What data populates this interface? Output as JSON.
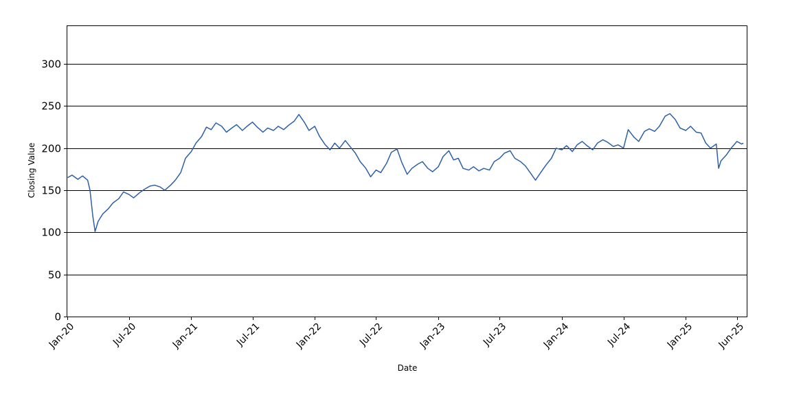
{
  "chart_data": {
    "type": "line",
    "title": "",
    "xlabel": "Date",
    "ylabel": "Closing Value",
    "ylim": [
      0,
      345
    ],
    "xlim": [
      "2020-01-01",
      "2025-06-30"
    ],
    "grid": "horizontal",
    "legend": "none",
    "yticks": [
      0,
      50,
      100,
      150,
      200,
      250,
      300
    ],
    "xticks": [
      {
        "label": "Jan-20",
        "date": "2020-01-01"
      },
      {
        "label": "Jul-20",
        "date": "2020-07-01"
      },
      {
        "label": "Jan-21",
        "date": "2021-01-01"
      },
      {
        "label": "Jul-21",
        "date": "2021-07-01"
      },
      {
        "label": "Jan-22",
        "date": "2022-01-01"
      },
      {
        "label": "Jul-22",
        "date": "2022-07-01"
      },
      {
        "label": "Jan-23",
        "date": "2023-01-01"
      },
      {
        "label": "Jul-23",
        "date": "2023-07-01"
      },
      {
        "label": "Jan-24",
        "date": "2024-01-01"
      },
      {
        "label": "Jul-24",
        "date": "2024-07-01"
      },
      {
        "label": "Jan-25",
        "date": "2025-01-01"
      },
      {
        "label": "Jun-25",
        "date": "2025-06-01"
      }
    ],
    "line_color": "#2b5fa8",
    "series": [
      {
        "x": [
          "2020-01-02",
          "2020-01-15",
          "2020-02-01",
          "2020-02-15",
          "2020-03-01",
          "2020-03-08",
          "2020-03-16",
          "2020-03-23",
          "2020-04-01",
          "2020-04-15",
          "2020-05-01",
          "2020-05-15",
          "2020-06-01",
          "2020-06-15",
          "2020-07-01",
          "2020-07-15",
          "2020-08-01",
          "2020-08-15",
          "2020-09-01",
          "2020-09-15",
          "2020-10-01",
          "2020-10-15",
          "2020-11-01",
          "2020-11-15",
          "2020-12-01",
          "2020-12-15",
          "2021-01-01",
          "2021-01-15",
          "2021-02-01",
          "2021-02-15",
          "2021-03-01",
          "2021-03-15",
          "2021-04-01",
          "2021-04-15",
          "2021-05-01",
          "2021-05-15",
          "2021-06-01",
          "2021-06-15",
          "2021-07-01",
          "2021-07-15",
          "2021-08-01",
          "2021-08-15",
          "2021-09-01",
          "2021-09-15",
          "2021-10-01",
          "2021-10-15",
          "2021-11-01",
          "2021-11-15",
          "2021-12-01",
          "2021-12-15",
          "2022-01-01",
          "2022-01-15",
          "2022-02-01",
          "2022-02-15",
          "2022-03-01",
          "2022-03-15",
          "2022-04-01",
          "2022-04-15",
          "2022-05-01",
          "2022-05-15",
          "2022-06-01",
          "2022-06-15",
          "2022-07-01",
          "2022-07-15",
          "2022-08-01",
          "2022-08-15",
          "2022-09-01",
          "2022-09-15",
          "2022-10-01",
          "2022-10-15",
          "2022-11-01",
          "2022-11-15",
          "2022-12-01",
          "2022-12-15",
          "2023-01-01",
          "2023-01-15",
          "2023-02-01",
          "2023-02-15",
          "2023-03-01",
          "2023-03-15",
          "2023-04-01",
          "2023-04-15",
          "2023-05-01",
          "2023-05-15",
          "2023-06-01",
          "2023-06-15",
          "2023-07-01",
          "2023-07-15",
          "2023-08-01",
          "2023-08-15",
          "2023-09-01",
          "2023-09-15",
          "2023-10-01",
          "2023-10-15",
          "2023-11-01",
          "2023-11-15",
          "2023-12-01",
          "2023-12-15",
          "2024-01-01",
          "2024-01-15",
          "2024-02-01",
          "2024-02-15",
          "2024-03-01",
          "2024-03-15",
          "2024-04-01",
          "2024-04-15",
          "2024-05-01",
          "2024-05-15",
          "2024-06-01",
          "2024-06-15",
          "2024-07-01",
          "2024-07-15",
          "2024-08-01",
          "2024-08-15",
          "2024-09-01",
          "2024-09-15",
          "2024-10-01",
          "2024-10-15",
          "2024-11-01",
          "2024-11-15",
          "2024-12-01",
          "2024-12-15",
          "2025-01-01",
          "2025-01-15",
          "2025-02-01",
          "2025-02-15",
          "2025-03-01",
          "2025-03-15",
          "2025-04-01",
          "2025-04-08",
          "2025-04-15",
          "2025-05-01",
          "2025-05-15",
          "2025-06-01",
          "2025-06-15",
          "2025-06-20"
        ],
        "values": [
          165,
          168,
          163,
          167,
          162,
          150,
          120,
          101,
          113,
          122,
          128,
          135,
          140,
          148,
          145,
          141,
          147,
          151,
          155,
          156,
          154,
          150,
          156,
          162,
          171,
          188,
          196,
          206,
          214,
          225,
          222,
          230,
          226,
          219,
          224,
          228,
          221,
          226,
          231,
          225,
          219,
          224,
          221,
          226,
          222,
          227,
          232,
          240,
          231,
          221,
          226,
          214,
          204,
          198,
          206,
          200,
          209,
          202,
          194,
          184,
          176,
          166,
          174,
          171,
          182,
          195,
          199,
          183,
          169,
          176,
          181,
          184,
          176,
          172,
          178,
          190,
          197,
          186,
          188,
          176,
          174,
          178,
          173,
          176,
          174,
          184,
          188,
          194,
          197,
          188,
          184,
          179,
          170,
          162,
          172,
          180,
          188,
          200,
          198,
          203,
          196,
          204,
          208,
          203,
          198,
          206,
          210,
          207,
          202,
          204,
          200,
          222,
          213,
          208,
          220,
          223,
          220,
          226,
          238,
          241,
          234,
          224,
          221,
          226,
          219,
          218,
          206,
          200,
          205,
          176,
          185,
          192,
          200,
          208,
          205,
          206
        ]
      }
    ]
  }
}
